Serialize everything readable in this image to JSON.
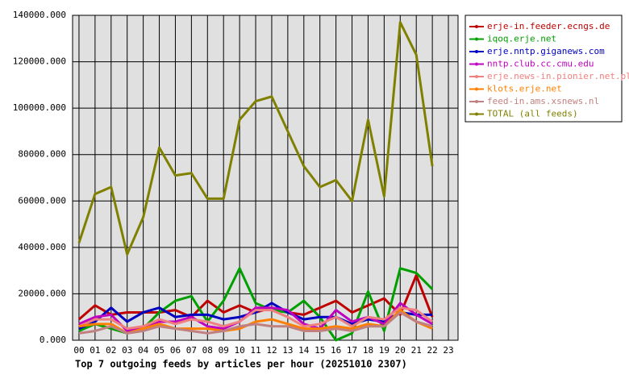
{
  "chart_data": {
    "type": "line",
    "title": "Top 7 outgoing feeds by articles per hour (20251010 2307)",
    "categories": [
      "00",
      "01",
      "02",
      "03",
      "04",
      "05",
      "06",
      "07",
      "08",
      "09",
      "10",
      "11",
      "12",
      "13",
      "14",
      "15",
      "16",
      "17",
      "18",
      "19",
      "20",
      "21",
      "22",
      "23"
    ],
    "ylim": [
      0,
      140000
    ],
    "yticks": [
      {
        "value": 0,
        "label": "0.000"
      },
      {
        "value": 20000,
        "label": "20000.000"
      },
      {
        "value": 40000,
        "label": "40000.000"
      },
      {
        "value": 60000,
        "label": "60000.000"
      },
      {
        "value": 80000,
        "label": "80000.000"
      },
      {
        "value": 100000,
        "label": "100000.000"
      },
      {
        "value": 120000,
        "label": "120000.000"
      },
      {
        "value": 140000,
        "label": "140000.000"
      }
    ],
    "grid": true,
    "legend": "right",
    "series": [
      {
        "name": "erje-in.feeder.ecngs.de",
        "color": "#c00000",
        "values": [
          9000,
          15000,
          11000,
          12000,
          12000,
          12000,
          13000,
          10000,
          17000,
          12000,
          15000,
          12000,
          14000,
          12000,
          11000,
          14000,
          17000,
          12000,
          15000,
          18000,
          11000,
          28000,
          10000,
          null
        ]
      },
      {
        "name": "iqoq.erje.net",
        "color": "#00a000",
        "values": [
          4000,
          7000,
          5000,
          3000,
          5000,
          12000,
          17000,
          19000,
          8000,
          17000,
          31000,
          16000,
          13000,
          12000,
          17000,
          10000,
          0,
          3000,
          21000,
          4000,
          31000,
          29000,
          22000,
          null
        ]
      },
      {
        "name": "erje.nntp.giganews.com",
        "color": "#0000c0",
        "values": [
          5000,
          8000,
          14000,
          8000,
          12000,
          14000,
          10000,
          11000,
          11000,
          9000,
          10000,
          12000,
          16000,
          12000,
          9000,
          10000,
          10000,
          7000,
          9000,
          8000,
          12000,
          11000,
          11000,
          null
        ]
      },
      {
        "name": "nntp.club.cc.cmu.edu",
        "color": "#c000c0",
        "values": [
          7000,
          10000,
          11000,
          4000,
          6000,
          8000,
          8000,
          10000,
          6000,
          5000,
          8000,
          14000,
          14000,
          13000,
          7000,
          5000,
          13000,
          8000,
          10000,
          7000,
          16000,
          11000,
          7000,
          null
        ]
      },
      {
        "name": "erje.news-in.pionier.net.pl",
        "color": "#f08080",
        "values": [
          6000,
          9000,
          9000,
          5000,
          6000,
          9000,
          7000,
          9000,
          8000,
          6000,
          8000,
          13000,
          13000,
          10000,
          6000,
          7000,
          10000,
          6000,
          10000,
          9000,
          14000,
          13000,
          8000,
          null
        ]
      },
      {
        "name": "klots.erje.net",
        "color": "#ff8000",
        "values": [
          6000,
          7000,
          7000,
          3000,
          5000,
          7000,
          5000,
          5000,
          5000,
          4000,
          5000,
          8000,
          9000,
          7000,
          5000,
          5000,
          6000,
          5000,
          7000,
          6000,
          13000,
          8000,
          5000,
          null
        ]
      },
      {
        "name": "feed-in.ams.xsnews.nl",
        "color": "#c08080",
        "values": [
          3000,
          4000,
          6000,
          3000,
          4000,
          6000,
          5000,
          4000,
          3000,
          4000,
          6000,
          7000,
          6000,
          6000,
          4000,
          4000,
          5000,
          4000,
          6000,
          6000,
          12000,
          8000,
          6000,
          null
        ]
      },
      {
        "name": "TOTAL (all feeds)",
        "color": "#808000",
        "values": [
          42000,
          63000,
          66000,
          37000,
          53000,
          83000,
          71000,
          72000,
          61000,
          61000,
          95000,
          103000,
          105000,
          90000,
          75000,
          66000,
          69000,
          60000,
          95000,
          62000,
          137000,
          123000,
          75000,
          null
        ]
      }
    ]
  }
}
